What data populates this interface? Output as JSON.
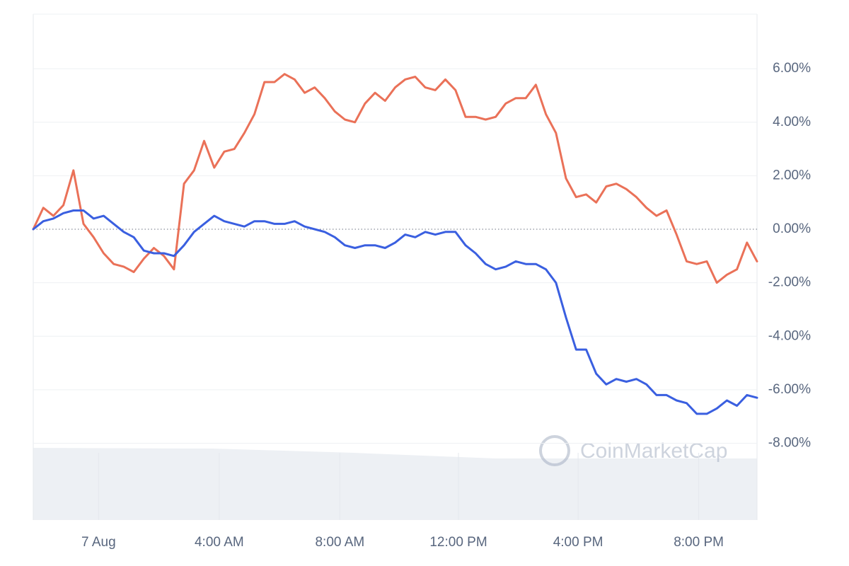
{
  "chart_data": {
    "type": "line",
    "watermark": "CoinMarketCap",
    "xlim": [
      0,
      72
    ],
    "xticks": [
      {
        "value": 6.5,
        "label": "7 Aug"
      },
      {
        "value": 18.5,
        "label": "4:00 AM"
      },
      {
        "value": 30.5,
        "label": "8:00 AM"
      },
      {
        "value": 42.3,
        "label": "12:00 PM"
      },
      {
        "value": 54.2,
        "label": "4:00 PM"
      },
      {
        "value": 66.2,
        "label": "8:00 PM"
      }
    ],
    "ylim": [
      -10.87,
      8.04
    ],
    "yticks": [
      {
        "value": 6,
        "label": "6.00%"
      },
      {
        "value": 4,
        "label": "4.00%"
      },
      {
        "value": 2,
        "label": "2.00%"
      },
      {
        "value": 0,
        "label": "0.00%"
      },
      {
        "value": -2,
        "label": "-2.00%"
      },
      {
        "value": -4,
        "label": "-4.00%"
      },
      {
        "value": -6,
        "label": "-6.00%"
      },
      {
        "value": -8,
        "label": "-8.00%"
      }
    ],
    "grid": true,
    "series": [
      {
        "color": "#ea7158",
        "values": [
          0,
          0.8,
          0.5,
          0.9,
          2.2,
          0.2,
          -0.3,
          -0.9,
          -1.3,
          -1.4,
          -1.6,
          -1.1,
          -0.7,
          -1.0,
          -1.5,
          1.7,
          2.2,
          3.3,
          2.3,
          2.9,
          3.0,
          3.6,
          4.3,
          5.5,
          5.5,
          5.8,
          5.6,
          5.1,
          5.3,
          4.9,
          4.4,
          4.1,
          4.0,
          4.7,
          5.1,
          4.8,
          5.3,
          5.6,
          5.7,
          5.3,
          5.2,
          5.6,
          5.2,
          4.2,
          4.2,
          4.1,
          4.2,
          4.7,
          4.9,
          4.9,
          5.4,
          4.3,
          3.6,
          1.9,
          1.2,
          1.3,
          1.0,
          1.6,
          1.7,
          1.5,
          1.2,
          0.8,
          0.5,
          0.7,
          -0.2,
          -1.2,
          -1.3,
          -1.2,
          -2.0,
          -1.7,
          -1.5,
          -0.5,
          -1.2
        ]
      },
      {
        "color": "#3a5fe0",
        "values": [
          0,
          0.3,
          0.4,
          0.6,
          0.7,
          0.7,
          0.4,
          0.5,
          0.2,
          -0.1,
          -0.3,
          -0.8,
          -0.9,
          -0.9,
          -1.0,
          -0.6,
          -0.1,
          0.2,
          0.5,
          0.3,
          0.2,
          0.1,
          0.3,
          0.3,
          0.2,
          0.2,
          0.3,
          0.1,
          0.0,
          -0.1,
          -0.3,
          -0.6,
          -0.7,
          -0.6,
          -0.6,
          -0.7,
          -0.5,
          -0.2,
          -0.3,
          -0.1,
          -0.2,
          -0.1,
          -0.1,
          -0.6,
          -0.9,
          -1.3,
          -1.5,
          -1.4,
          -1.2,
          -1.3,
          -1.3,
          -1.5,
          -2.0,
          -3.3,
          -4.5,
          -4.5,
          -5.4,
          -5.8,
          -5.6,
          -5.7,
          -5.6,
          -5.8,
          -6.2,
          -6.2,
          -6.4,
          -6.5,
          -6.9,
          -6.9,
          -6.7,
          -6.4,
          -6.6,
          -6.2,
          -6.3
        ]
      }
    ]
  }
}
